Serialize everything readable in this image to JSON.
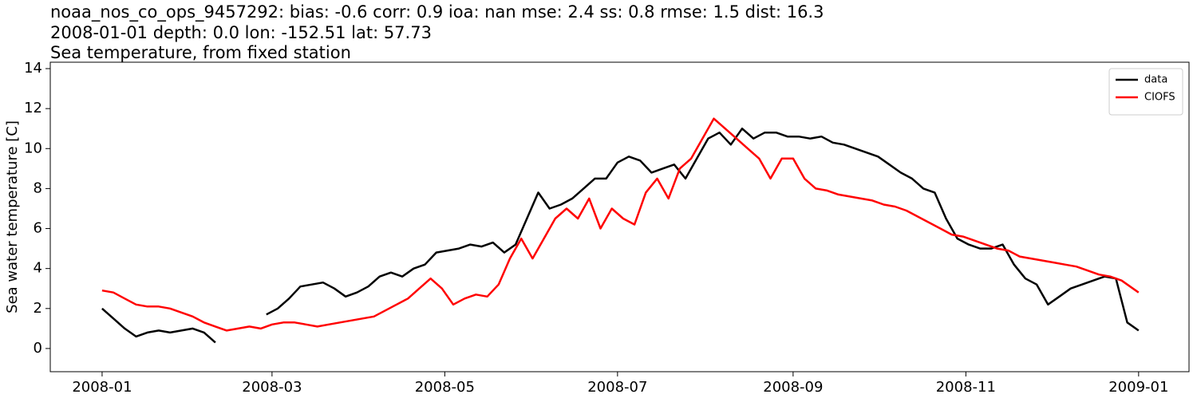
{
  "chart_data": {
    "type": "line",
    "title_lines": [
      "noaa_nos_co_ops_9457292: bias: -0.6  corr: 0.9  ioa: nan  mse: 2.4  ss: 0.8  rmse: 1.5  dist: 16.3",
      "2008-01-01 depth: 0.0 lon: -152.51 lat: 57.73",
      "Sea temperature, from fixed station"
    ],
    "ylabel": "Sea water temperature [C]",
    "xlim": [
      -18.3,
      383.8
    ],
    "xticks": [
      {
        "value": 0,
        "label": "2008-01"
      },
      {
        "value": 60,
        "label": "2008-03"
      },
      {
        "value": 121,
        "label": "2008-05"
      },
      {
        "value": 182,
        "label": "2008-07"
      },
      {
        "value": 244,
        "label": "2008-09"
      },
      {
        "value": 305,
        "label": "2008-11"
      },
      {
        "value": 366,
        "label": "2009-01"
      }
    ],
    "ylim": [
      -1.16,
      14.32
    ],
    "yticks": [
      0,
      2,
      4,
      6,
      8,
      10,
      12,
      14
    ],
    "legend": "upper right",
    "series": [
      {
        "name": "data",
        "color": "#000000",
        "x": [
          0,
          4,
          8,
          12,
          16,
          20,
          24,
          28,
          32,
          36,
          40,
          48,
          58,
          62,
          66,
          70,
          74,
          78,
          82,
          86,
          90,
          94,
          98,
          102,
          106,
          110,
          114,
          118,
          122,
          126,
          130,
          134,
          138,
          142,
          146,
          150,
          154,
          158,
          162,
          166,
          170,
          174,
          178,
          182,
          186,
          190,
          194,
          198,
          202,
          206,
          210,
          214,
          218,
          222,
          226,
          230,
          234,
          238,
          242,
          246,
          250,
          254,
          258,
          262,
          266,
          270,
          274,
          278,
          282,
          286,
          290,
          294,
          298,
          302,
          306,
          310,
          314,
          318,
          322,
          326,
          330,
          334,
          338,
          342,
          346,
          350,
          354,
          358,
          362,
          366
        ],
        "values": [
          2.0,
          1.5,
          1.0,
          0.6,
          0.8,
          0.9,
          0.8,
          0.9,
          1.0,
          0.8,
          0.3,
          null,
          1.7,
          2.0,
          2.5,
          3.1,
          3.2,
          3.3,
          3.0,
          2.6,
          2.8,
          3.1,
          3.6,
          3.8,
          3.6,
          4.0,
          4.2,
          4.8,
          4.9,
          5.0,
          5.2,
          5.1,
          5.3,
          4.8,
          5.2,
          6.5,
          7.8,
          7.0,
          7.2,
          7.5,
          8.0,
          8.5,
          8.5,
          9.3,
          9.6,
          9.4,
          8.8,
          9.0,
          9.2,
          8.5,
          9.5,
          10.5,
          10.8,
          10.2,
          11.0,
          10.5,
          10.8,
          10.8,
          10.6,
          10.6,
          10.5,
          10.6,
          10.3,
          10.2,
          10.0,
          9.8,
          9.6,
          9.2,
          8.8,
          8.5,
          8.0,
          7.8,
          6.5,
          5.5,
          5.2,
          5.0,
          5.0,
          5.2,
          4.2,
          3.5,
          3.2,
          2.2,
          2.6,
          3.0,
          3.2,
          3.4,
          3.6,
          3.5,
          1.3,
          0.9
        ]
      },
      {
        "name": "CIOFS",
        "color": "#ff0000",
        "x": [
          0,
          4,
          8,
          12,
          16,
          20,
          24,
          28,
          32,
          36,
          40,
          44,
          48,
          52,
          56,
          60,
          64,
          68,
          72,
          76,
          80,
          84,
          88,
          92,
          96,
          100,
          104,
          108,
          112,
          116,
          120,
          124,
          128,
          132,
          136,
          140,
          144,
          148,
          152,
          156,
          160,
          164,
          168,
          172,
          176,
          180,
          184,
          188,
          192,
          196,
          200,
          204,
          208,
          212,
          216,
          220,
          224,
          228,
          232,
          236,
          240,
          244,
          248,
          252,
          256,
          260,
          264,
          268,
          272,
          276,
          280,
          284,
          288,
          292,
          296,
          300,
          304,
          308,
          312,
          316,
          320,
          324,
          328,
          332,
          336,
          340,
          344,
          348,
          352,
          356,
          360,
          364,
          366
        ],
        "values": [
          2.9,
          2.8,
          2.5,
          2.2,
          2.1,
          2.1,
          2.0,
          1.8,
          1.6,
          1.3,
          1.1,
          0.9,
          1.0,
          1.1,
          1.0,
          1.2,
          1.3,
          1.3,
          1.2,
          1.1,
          1.2,
          1.3,
          1.4,
          1.5,
          1.6,
          1.9,
          2.2,
          2.5,
          3.0,
          3.5,
          3.0,
          2.2,
          2.5,
          2.7,
          2.6,
          3.2,
          4.5,
          5.5,
          4.5,
          5.5,
          6.5,
          7.0,
          6.5,
          7.5,
          6.0,
          7.0,
          6.5,
          6.2,
          7.8,
          8.5,
          7.5,
          9.0,
          9.5,
          10.5,
          11.5,
          11.0,
          10.5,
          10.0,
          9.5,
          8.5,
          9.5,
          9.5,
          8.5,
          8.0,
          7.9,
          7.7,
          7.6,
          7.5,
          7.4,
          7.2,
          7.1,
          6.9,
          6.6,
          6.3,
          6.0,
          5.7,
          5.6,
          5.4,
          5.2,
          5.0,
          4.9,
          4.6,
          4.5,
          4.4,
          4.3,
          4.2,
          4.1,
          3.9,
          3.7,
          3.6,
          3.4,
          3.0,
          2.8
        ]
      }
    ]
  }
}
